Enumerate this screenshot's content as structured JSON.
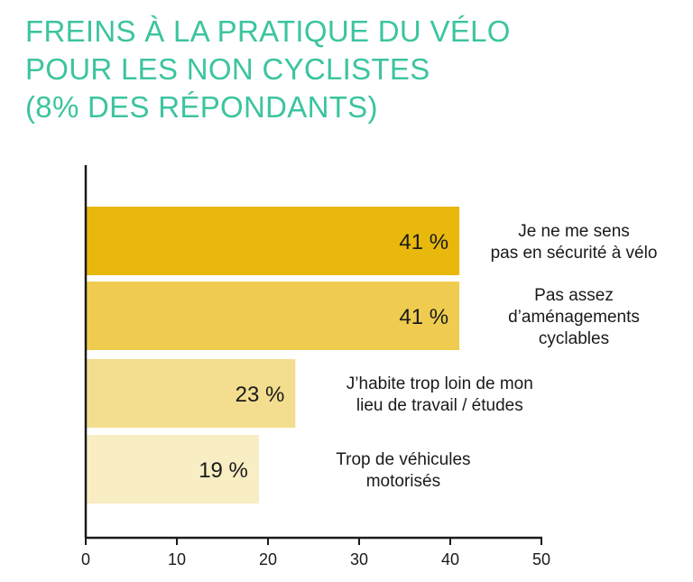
{
  "chart_data": {
    "type": "bar",
    "orientation": "horizontal",
    "title_lines": [
      "FREINS À LA PRATIQUE DU VÉLO",
      "POUR LES NON CYCLISTES",
      "(8% DES RÉPONDANTS)"
    ],
    "categories": [
      [
        "Je ne me sens",
        "pas en sécurité à vélo"
      ],
      [
        "Pas assez",
        "d’aménagements",
        "cyclables"
      ],
      [
        "J’habite trop loin de mon",
        "lieu de travail / études"
      ],
      [
        "Trop de véhicules",
        "motorisés"
      ]
    ],
    "values": [
      41,
      41,
      23,
      19
    ],
    "value_labels": [
      "41 %",
      "41 %",
      "23 %",
      "19 %"
    ],
    "bar_colors": [
      "#e8b80d",
      "#efcc4f",
      "#f3de8f",
      "#f8edc3"
    ],
    "xlim": [
      0,
      50
    ],
    "xticks": [
      0,
      10,
      20,
      30,
      40,
      50
    ],
    "grid": false
  },
  "colors": {
    "title": "#3cc4a0",
    "axis": "#1a1a1a"
  }
}
